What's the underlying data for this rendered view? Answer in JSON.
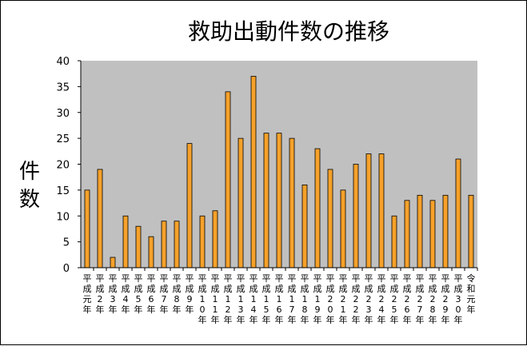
{
  "chart_data": {
    "type": "bar",
    "title": "救助出動件数の推移",
    "ylabel": "件数",
    "xlabel": "",
    "ylim": [
      0,
      40
    ],
    "yticks": [
      0,
      5,
      10,
      15,
      20,
      25,
      30,
      35,
      40
    ],
    "grid": false,
    "legend": "none",
    "colors": {
      "bar_fill": "#f5a12a",
      "bar_stroke": "#000000",
      "plot_bg": "#c0c0c0",
      "page_bg": "#ffffff"
    },
    "categories": [
      "平成元年",
      "平成2年",
      "平成3年",
      "平成4年",
      "平成5年",
      "平成6年",
      "平成7年",
      "平成8年",
      "平成9年",
      "平成10年",
      "平成11年",
      "平成12年",
      "平成13年",
      "平成14年",
      "平成15年",
      "平成16年",
      "平成17年",
      "平成18年",
      "平成19年",
      "平成20年",
      "平成21年",
      "平成22年",
      "平成23年",
      "平成24年",
      "平成25年",
      "平成26年",
      "平成27年",
      "平成28年",
      "平成29年",
      "平成30年",
      "令和元年"
    ],
    "values": [
      15,
      19,
      2,
      10,
      8,
      6,
      9,
      9,
      24,
      10,
      11,
      34,
      25,
      37,
      26,
      26,
      25,
      16,
      23,
      19,
      15,
      20,
      22,
      22,
      10,
      13,
      14,
      13,
      14,
      21,
      14
    ]
  }
}
